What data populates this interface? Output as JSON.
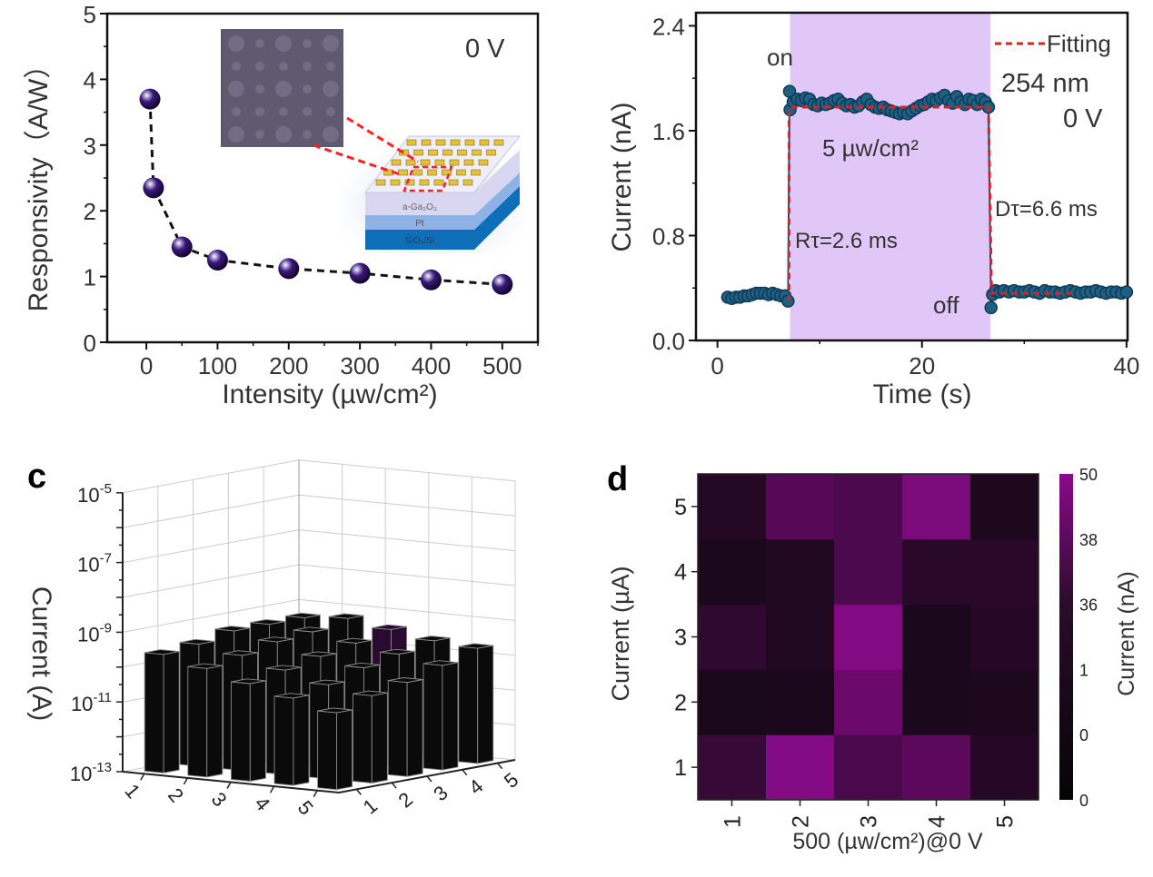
{
  "panels": {
    "c_label": "c",
    "d_label": "d"
  },
  "chart_data": [
    {
      "panel": "a",
      "type": "scatter",
      "title": "",
      "xlabel": "Intensity (µw/cm²)",
      "ylabel": "Responsivity（A/W）",
      "xlim": [
        -55,
        550
      ],
      "ylim": [
        0,
        5
      ],
      "x_ticks": [
        0,
        100,
        200,
        300,
        400,
        500
      ],
      "y_ticks": [
        0,
        1,
        2,
        3,
        4,
        5
      ],
      "x_tick_labels": [
        "0",
        "100",
        "200",
        "300",
        "400",
        "500"
      ],
      "y_tick_labels": [
        "0",
        "1",
        "2",
        "3",
        "4",
        "5"
      ],
      "x": [
        5,
        10,
        50,
        100,
        200,
        300,
        400,
        500
      ],
      "y": [
        3.7,
        2.35,
        1.45,
        1.25,
        1.12,
        1.05,
        0.95,
        0.88
      ],
      "line_style": "dashed",
      "marker_color": "#2a0a5e",
      "annotation": "0 V",
      "inset_layers": [
        "a-Ga₂O₃",
        "Pt",
        "SiO₂/Si"
      ],
      "grid": false
    },
    {
      "panel": "b",
      "type": "line",
      "title": "",
      "xlabel": "Time (s)",
      "ylabel": "Current (nA)",
      "xlim": [
        -2.1,
        40.1
      ],
      "ylim": [
        0,
        2.5
      ],
      "x_ticks": [
        0,
        20,
        40
      ],
      "y_ticks": [
        0,
        0.8,
        1.6,
        2.4
      ],
      "x_tick_labels": [
        "0",
        "20",
        "40"
      ],
      "y_tick_labels": [
        "0.0",
        "0.8",
        "1.6",
        "2.4"
      ],
      "illumination_window": [
        7.1,
        26.7
      ],
      "illumination_color": "#e1c6f8",
      "data_color": "#1f5f82",
      "fit_color": "#e02020",
      "legend": [
        "Fitting"
      ],
      "legend_position": "top-right",
      "annotations": {
        "on": "on",
        "off": "off",
        "intensity": "5 µw/cm²",
        "rise": "Rτ=2.6 ms",
        "decay": "Dτ=6.6 ms",
        "wavelength": "254 nm",
        "bias": "0 V"
      },
      "points": [
        [
          1,
          0.33
        ],
        [
          1.4,
          0.32
        ],
        [
          1.8,
          0.33
        ],
        [
          2.2,
          0.33
        ],
        [
          2.6,
          0.34
        ],
        [
          3,
          0.34
        ],
        [
          3.4,
          0.35
        ],
        [
          3.8,
          0.36
        ],
        [
          4.2,
          0.36
        ],
        [
          4.6,
          0.36
        ],
        [
          5,
          0.35
        ],
        [
          5.4,
          0.36
        ],
        [
          5.8,
          0.35
        ],
        [
          6.2,
          0.34
        ],
        [
          6.6,
          0.34
        ],
        [
          6.9,
          0.3
        ],
        [
          7.05,
          1.9
        ],
        [
          7.1,
          1.76
        ],
        [
          7.4,
          1.82
        ],
        [
          7.8,
          1.84
        ],
        [
          8.2,
          1.83
        ],
        [
          8.6,
          1.85
        ],
        [
          9,
          1.84
        ],
        [
          9.4,
          1.8
        ],
        [
          9.8,
          1.79
        ],
        [
          10.2,
          1.81
        ],
        [
          10.6,
          1.8
        ],
        [
          11,
          1.81
        ],
        [
          11.4,
          1.83
        ],
        [
          11.8,
          1.84
        ],
        [
          12.2,
          1.81
        ],
        [
          12.6,
          1.79
        ],
        [
          13,
          1.8
        ],
        [
          13.4,
          1.78
        ],
        [
          13.8,
          1.79
        ],
        [
          14.2,
          1.82
        ],
        [
          14.6,
          1.84
        ],
        [
          15,
          1.8
        ],
        [
          15.4,
          1.78
        ],
        [
          15.8,
          1.77
        ],
        [
          16.2,
          1.78
        ],
        [
          16.6,
          1.76
        ],
        [
          17,
          1.75
        ],
        [
          17.4,
          1.74
        ],
        [
          17.8,
          1.73
        ],
        [
          18.2,
          1.74
        ],
        [
          18.6,
          1.73
        ],
        [
          19,
          1.75
        ],
        [
          19.4,
          1.77
        ],
        [
          19.8,
          1.79
        ],
        [
          20.2,
          1.8
        ],
        [
          20.6,
          1.82
        ],
        [
          21,
          1.84
        ],
        [
          21.4,
          1.83
        ],
        [
          21.8,
          1.85
        ],
        [
          22.2,
          1.87
        ],
        [
          22.6,
          1.83
        ],
        [
          23,
          1.81
        ],
        [
          23.4,
          1.86
        ],
        [
          23.8,
          1.82
        ],
        [
          24.2,
          1.8
        ],
        [
          24.6,
          1.84
        ],
        [
          25,
          1.83
        ],
        [
          25.4,
          1.8
        ],
        [
          25.8,
          1.84
        ],
        [
          26.2,
          1.82
        ],
        [
          26.5,
          1.78
        ],
        [
          26.75,
          0.25
        ],
        [
          26.9,
          0.35
        ],
        [
          27.2,
          0.38
        ],
        [
          27.6,
          0.37
        ],
        [
          28,
          0.38
        ],
        [
          28.5,
          0.37
        ],
        [
          29,
          0.38
        ],
        [
          29.5,
          0.37
        ],
        [
          30,
          0.37
        ],
        [
          30.5,
          0.38
        ],
        [
          31,
          0.37
        ],
        [
          31.5,
          0.36
        ],
        [
          32,
          0.38
        ],
        [
          32.5,
          0.37
        ],
        [
          33,
          0.37
        ],
        [
          33.5,
          0.36
        ],
        [
          34,
          0.37
        ],
        [
          34.5,
          0.38
        ],
        [
          35,
          0.37
        ],
        [
          35.5,
          0.36
        ],
        [
          36,
          0.37
        ],
        [
          36.5,
          0.37
        ],
        [
          37,
          0.38
        ],
        [
          37.5,
          0.37
        ],
        [
          38,
          0.36
        ],
        [
          38.5,
          0.37
        ],
        [
          39,
          0.37
        ],
        [
          39.5,
          0.36
        ],
        [
          40,
          0.37
        ]
      ],
      "fit": [
        [
          7.0,
          0.3
        ],
        [
          7.0,
          1.78
        ],
        [
          26.5,
          1.78
        ],
        [
          26.8,
          0.36
        ],
        [
          35,
          0.36
        ]
      ]
    },
    {
      "panel": "c",
      "type": "bar3d",
      "title": "",
      "zlabel": "Current (A)",
      "z_scale": "log",
      "zlim": [
        1e-13,
        1e-05
      ],
      "z_tick_base": "10",
      "z_tick_exponents": [
        "-13",
        "-11",
        "-9",
        "-7",
        "-5"
      ],
      "x_tick_labels": [
        "1",
        "2",
        "3",
        "4",
        "5"
      ],
      "y_tick_labels": [
        "1",
        "2",
        "3",
        "4",
        "5"
      ],
      "values": [
        [
          2.5e-10,
          3.2e-10,
          5e-10,
          5e-10,
          5e-10
        ],
        [
          1.3e-10,
          2e-10,
          3.2e-10,
          4e-10,
          6.3e-10
        ],
        [
          6.3e-11,
          1e-10,
          1.6e-10,
          2.5e-10,
          4e-10
        ],
        [
          3.2e-11,
          5e-11,
          1e-10,
          1.6e-10,
          2.5e-10
        ],
        [
          1.6e-11,
          3.2e-11,
          5e-11,
          1e-10,
          2e-10
        ]
      ],
      "bar_color": "#0a0a0a",
      "highlight_bar_color": "#2a0a2e",
      "grid": true
    },
    {
      "panel": "d",
      "type": "heatmap",
      "title": "",
      "xlabel": "500 (µw/cm²)@0 V",
      "ylabel": "Current (µA)",
      "x_tick_labels": [
        "1",
        "2",
        "3",
        "4",
        "5"
      ],
      "y_tick_labels": [
        "1",
        "2",
        "3",
        "4",
        "5"
      ],
      "values_rows_bottom_to_top": [
        [
          17,
          47,
          25,
          32,
          11
        ],
        [
          6,
          7,
          38,
          7,
          8
        ],
        [
          15,
          9,
          47,
          7,
          11
        ],
        [
          7,
          9,
          26,
          12,
          12
        ],
        [
          10,
          30,
          26,
          44,
          8
        ]
      ],
      "colorbar_label": "Current (nA)",
      "colorbar_tick_labels": [
        "50",
        "38",
        "36",
        "1",
        "0",
        "0"
      ],
      "colormap": [
        "#0a080a",
        "#8a0a8a"
      ]
    }
  ]
}
